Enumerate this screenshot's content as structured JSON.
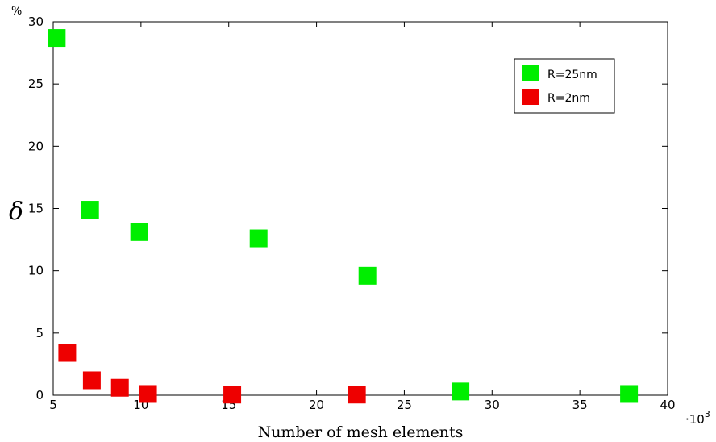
{
  "chart_data": {
    "type": "scatter",
    "title": "",
    "xlabel": "Number of mesh elements",
    "ylabel": "δ",
    "y_unit": "%",
    "x_multiplier_label": "·10",
    "x_multiplier_exp": "3",
    "xlim": [
      5,
      40
    ],
    "ylim": [
      0,
      30
    ],
    "xticks": [
      "5",
      "10",
      "15",
      "20",
      "25",
      "30",
      "35",
      "40"
    ],
    "yticks": [
      "0",
      "5",
      "10",
      "15",
      "20",
      "25",
      "30"
    ],
    "grid": false,
    "legend_position": "top-right",
    "series": [
      {
        "name": "R=25nm",
        "color": "#00ee00",
        "marker": "square",
        "x": [
          5.2,
          7.1,
          9.9,
          16.7,
          22.9,
          28.2,
          37.8
        ],
        "y": [
          28.7,
          14.9,
          13.1,
          12.6,
          9.6,
          0.3,
          0.1
        ]
      },
      {
        "name": "R=2nm",
        "color": "#ee0000",
        "marker": "square",
        "x": [
          5.8,
          7.2,
          8.8,
          10.4,
          15.2,
          22.3
        ],
        "y": [
          3.4,
          1.2,
          0.6,
          0.1,
          0.05,
          0.05
        ]
      }
    ]
  }
}
